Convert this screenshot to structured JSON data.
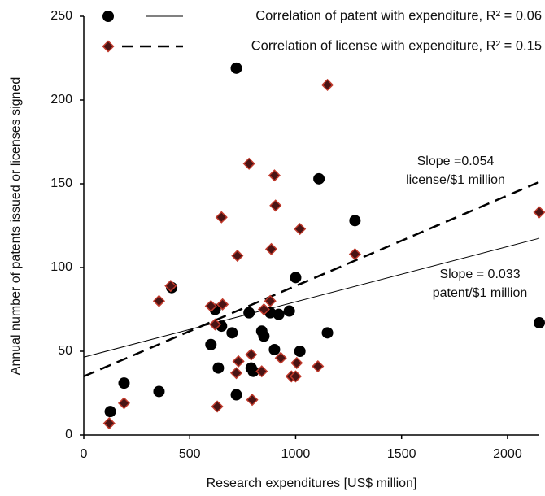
{
  "chart_data": {
    "type": "scatter",
    "xlabel": "Research expenditures [US$ million]",
    "ylabel": "Annual number of patents issued or licenses signed",
    "xlim": [
      0,
      2150
    ],
    "ylim": [
      0,
      250
    ],
    "xticks": [
      0,
      500,
      1000,
      1500,
      2000
    ],
    "yticks": [
      0,
      50,
      100,
      150,
      200,
      250
    ],
    "grid": false,
    "legend": "upper right",
    "series": [
      {
        "name": "Correlation of patent with expenditure, R² = 0.06",
        "marker": "circle",
        "color": "#000000",
        "edgecolor": "#000000",
        "line_style": "solid",
        "x": [
          125,
          190,
          355,
          415,
          600,
          620,
          635,
          650,
          700,
          720,
          720,
          780,
          790,
          800,
          840,
          850,
          880,
          900,
          920,
          970,
          1000,
          1020,
          1110,
          1150,
          1280,
          2150
        ],
        "values": [
          14,
          31,
          26,
          88,
          54,
          75,
          40,
          65,
          61,
          219,
          24,
          73,
          40,
          38,
          62,
          59,
          73,
          51,
          72,
          74,
          94,
          50,
          153,
          61,
          128,
          67
        ],
        "trend_intercept": 46.5,
        "trend_slope": 0.033
      },
      {
        "name": "Correlation of license with expenditure, R² = 0.15",
        "marker": "diamond",
        "color": "#4a1414",
        "edgecolor": "#c0392b",
        "line_style": "dashed",
        "x": [
          120,
          190,
          355,
          410,
          600,
          630,
          620,
          650,
          655,
          720,
          725,
          730,
          780,
          790,
          795,
          840,
          850,
          880,
          885,
          900,
          905,
          930,
          980,
          1000,
          1005,
          1020,
          1105,
          1150,
          1280,
          2150
        ],
        "values": [
          7,
          19,
          80,
          89,
          77,
          17,
          66,
          130,
          78,
          37,
          107,
          44,
          162,
          48,
          21,
          38,
          75,
          80,
          111,
          155,
          137,
          46,
          35,
          35,
          43,
          123,
          41,
          209,
          108,
          133
        ],
        "trend_intercept": 35,
        "trend_slope": 0.054
      }
    ],
    "annotations": [
      {
        "lines": [
          "Slope =0.054",
          "license/$1 million"
        ]
      },
      {
        "lines": [
          "Slope = 0.033",
          "patent/$1 million"
        ]
      }
    ]
  }
}
